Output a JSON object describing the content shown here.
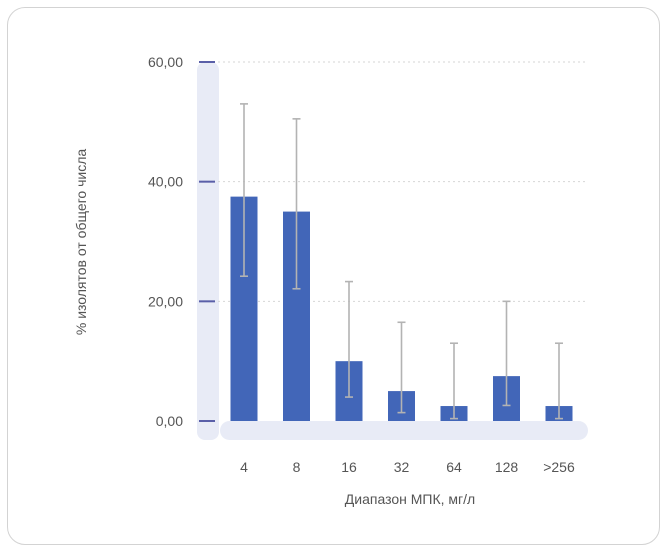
{
  "chart_data": {
    "type": "bar",
    "title": "",
    "xlabel": "Диапазон МПК, мг/л",
    "ylabel": "% изолятов от общего числа",
    "categories": [
      "4",
      "8",
      "16",
      "32",
      "64",
      "128",
      ">256"
    ],
    "values": [
      37.5,
      35.0,
      10.0,
      5.0,
      2.5,
      7.5,
      2.5
    ],
    "error_low": [
      24.2,
      22.1,
      4.0,
      1.4,
      0.4,
      2.6,
      0.4
    ],
    "error_high": [
      53.0,
      50.5,
      23.3,
      16.5,
      13.0,
      20.0,
      13.0
    ],
    "ylim": [
      0,
      60
    ],
    "yticks": [
      "0,00",
      "20,00",
      "40,00",
      "60,00"
    ],
    "ytick_values": [
      0,
      20,
      40,
      60
    ],
    "grid": "horizontal dotted",
    "colors": {
      "bar": "#4266b8",
      "error_bar": "#b3b3b3",
      "axis_band": "#e8ebf6",
      "tick_mark": "#5a5fa8",
      "grid": "#d6d6d6",
      "text": "#555555",
      "card_border": "#d3d3d3"
    }
  }
}
